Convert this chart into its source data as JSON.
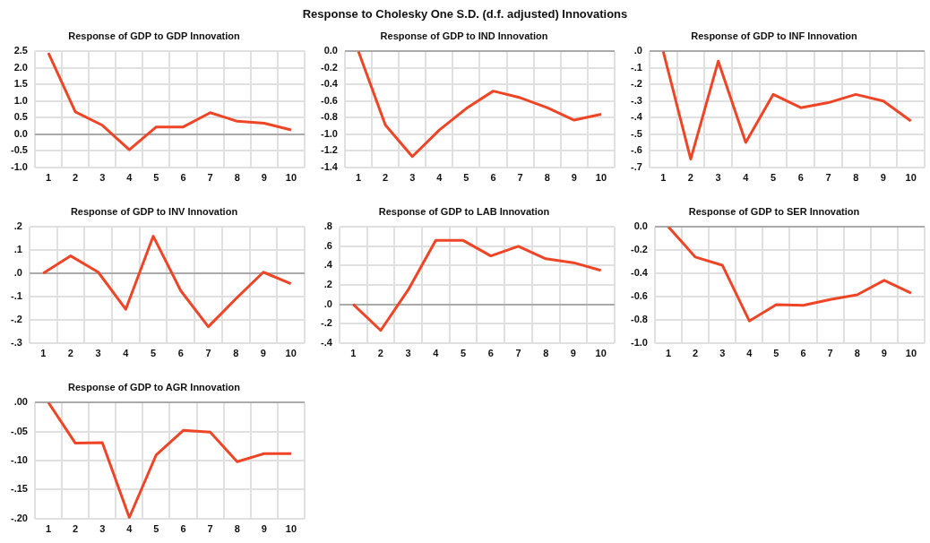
{
  "chart_data": [
    {
      "type": "line",
      "title": "Response of GDP to GDP Innovation",
      "annotations": [
        "Response to Cholesky One S.D. (d.f. adjusted) Innovations"
      ],
      "categories": [
        "1",
        "2",
        "3",
        "4",
        "5",
        "6",
        "7",
        "8",
        "9",
        "10"
      ],
      "values": [
        2.45,
        0.67,
        0.27,
        -0.47,
        0.22,
        0.22,
        0.65,
        0.39,
        0.33,
        0.13
      ],
      "color": "#ee4527",
      "ylim": [
        -1,
        2.5
      ],
      "yticks": [
        {
          "value": -1,
          "label": "-1.0"
        },
        {
          "value": -0.5,
          "label": "-0.5"
        },
        {
          "value": 0,
          "label": "0.0"
        },
        {
          "value": 0.5,
          "label": "0.5"
        },
        {
          "value": 1,
          "label": "1.0"
        },
        {
          "value": 1.5,
          "label": "1.5"
        },
        {
          "value": 2,
          "label": "2.0"
        },
        {
          "value": 2.5,
          "label": "2.5"
        }
      ],
      "grid": true,
      "legend": false,
      "marker": "none",
      "line_style": "solid"
    },
    {
      "type": "line",
      "title": "Response of GDP to IND Innovation",
      "categories": [
        "1",
        "2",
        "3",
        "4",
        "5",
        "6",
        "7",
        "8",
        "9",
        "10"
      ],
      "values": [
        0,
        -0.89,
        -1.27,
        -0.95,
        -0.69,
        -0.48,
        -0.56,
        -0.68,
        -0.83,
        -0.76
      ],
      "color": "#ee4527",
      "ylim": [
        -1.4,
        0
      ],
      "yticks": [
        {
          "value": -1.4,
          "label": "-1.4"
        },
        {
          "value": -1.2,
          "label": "-1.2"
        },
        {
          "value": -1,
          "label": "-1.0"
        },
        {
          "value": -0.8,
          "label": "-0.8"
        },
        {
          "value": -0.6,
          "label": "-0.6"
        },
        {
          "value": -0.4,
          "label": "-0.4"
        },
        {
          "value": -0.2,
          "label": "-0.2"
        },
        {
          "value": 0,
          "label": "0.0"
        }
      ],
      "grid": true,
      "legend": false,
      "marker": "none",
      "line_style": "solid"
    },
    {
      "type": "line",
      "title": "Response of GDP to INF Innovation",
      "categories": [
        "1",
        "2",
        "3",
        "4",
        "5",
        "6",
        "7",
        "8",
        "9",
        "10"
      ],
      "values": [
        0,
        -0.65,
        -0.06,
        -0.55,
        -0.26,
        -0.34,
        -0.31,
        -0.26,
        -0.3,
        -0.42
      ],
      "color": "#ee4527",
      "ylim": [
        -0.7,
        0
      ],
      "yticks": [
        {
          "value": -0.7,
          "label": "-.7"
        },
        {
          "value": -0.6,
          "label": "-.6"
        },
        {
          "value": -0.5,
          "label": "-.5"
        },
        {
          "value": -0.4,
          "label": "-.4"
        },
        {
          "value": -0.3,
          "label": "-.3"
        },
        {
          "value": -0.2,
          "label": "-.2"
        },
        {
          "value": -0.1,
          "label": "-.1"
        },
        {
          "value": 0,
          "label": ".0"
        }
      ],
      "grid": true,
      "legend": false,
      "marker": "none",
      "line_style": "solid"
    },
    {
      "type": "line",
      "title": "Response of GDP to INV Innovation",
      "categories": [
        "1",
        "2",
        "3",
        "4",
        "5",
        "6",
        "7",
        "8",
        "9",
        "10"
      ],
      "values": [
        0,
        0.075,
        0.005,
        -0.155,
        0.16,
        -0.075,
        -0.23,
        -0.11,
        0.005,
        -0.045
      ],
      "color": "#ee4527",
      "ylim": [
        -0.3,
        0.2
      ],
      "yticks": [
        {
          "value": -0.3,
          "label": "-.3"
        },
        {
          "value": -0.2,
          "label": "-.2"
        },
        {
          "value": -0.1,
          "label": "-.1"
        },
        {
          "value": 0,
          "label": ".0"
        },
        {
          "value": 0.1,
          "label": ".1"
        },
        {
          "value": 0.2,
          "label": ".2"
        }
      ],
      "grid": true,
      "legend": false,
      "marker": "none",
      "line_style": "solid"
    },
    {
      "type": "line",
      "title": "Response of GDP to LAB Innovation",
      "categories": [
        "1",
        "2",
        "3",
        "4",
        "5",
        "6",
        "7",
        "8",
        "9",
        "10"
      ],
      "values": [
        0,
        -0.27,
        0.15,
        0.66,
        0.66,
        0.5,
        0.6,
        0.47,
        0.43,
        0.35
      ],
      "color": "#ee4527",
      "ylim": [
        -0.4,
        0.8
      ],
      "yticks": [
        {
          "value": -0.4,
          "label": "-.4"
        },
        {
          "value": -0.2,
          "label": "-.2"
        },
        {
          "value": 0,
          "label": ".0"
        },
        {
          "value": 0.2,
          "label": ".2"
        },
        {
          "value": 0.4,
          "label": ".4"
        },
        {
          "value": 0.6,
          "label": ".6"
        },
        {
          "value": 0.8,
          "label": ".8"
        }
      ],
      "grid": true,
      "legend": false,
      "marker": "none",
      "line_style": "solid"
    },
    {
      "type": "line",
      "title": "Response of GDP to SER Innovation",
      "categories": [
        "1",
        "2",
        "3",
        "4",
        "5",
        "6",
        "7",
        "8",
        "9",
        "10"
      ],
      "values": [
        0,
        -0.26,
        -0.33,
        -0.81,
        -0.67,
        -0.675,
        -0.625,
        -0.585,
        -0.46,
        -0.57
      ],
      "color": "#ee4527",
      "ylim": [
        -1,
        0
      ],
      "yticks": [
        {
          "value": -1,
          "label": "-1.0"
        },
        {
          "value": -0.8,
          "label": "-0.8"
        },
        {
          "value": -0.6,
          "label": "-0.6"
        },
        {
          "value": -0.4,
          "label": "-0.4"
        },
        {
          "value": -0.2,
          "label": "-0.2"
        },
        {
          "value": 0,
          "label": "0.0"
        }
      ],
      "grid": true,
      "legend": false,
      "marker": "none",
      "line_style": "solid"
    },
    {
      "type": "line",
      "title": "Response of GDP to AGR Innovation",
      "categories": [
        "1",
        "2",
        "3",
        "4",
        "5",
        "6",
        "7",
        "8",
        "9",
        "10"
      ],
      "values": [
        0,
        -0.07,
        -0.069,
        -0.198,
        -0.09,
        -0.048,
        -0.051,
        -0.102,
        -0.088,
        -0.088
      ],
      "color": "#ee4527",
      "ylim": [
        -0.2,
        0
      ],
      "yticks": [
        {
          "value": -0.2,
          "label": "-.20"
        },
        {
          "value": -0.15,
          "label": "-.15"
        },
        {
          "value": -0.1,
          "label": "-.10"
        },
        {
          "value": -0.05,
          "label": "-.05"
        },
        {
          "value": 0,
          "label": ".00"
        }
      ],
      "grid": true,
      "legend": false,
      "marker": "none",
      "line_style": "solid"
    }
  ]
}
